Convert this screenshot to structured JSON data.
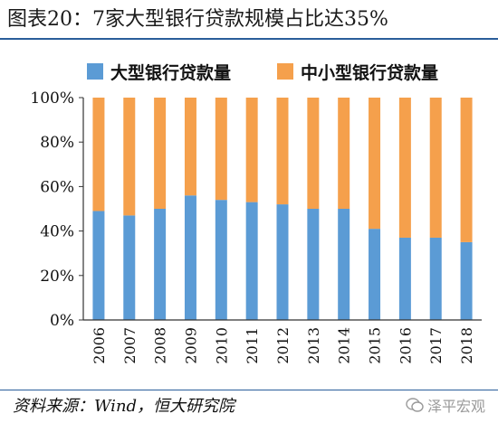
{
  "title": "图表20：7家大型银行贷款规模占比达35%",
  "source": "资料来源：Wind，恒大研究院",
  "watermark": "泽平宏观",
  "colors": {
    "accent": "#2a5d9a",
    "large_banks": "#5b9bd5",
    "small_medium_banks": "#f5a04c"
  },
  "chart_data": {
    "type": "bar",
    "stacked": true,
    "categories": [
      "2006",
      "2007",
      "2008",
      "2009",
      "2010",
      "2011",
      "2012",
      "2013",
      "2014",
      "2015",
      "2016",
      "2017",
      "2018"
    ],
    "series": [
      {
        "name": "大型银行贷款量",
        "values": [
          49,
          47,
          50,
          56,
          54,
          53,
          52,
          50,
          50,
          41,
          37,
          37,
          35
        ]
      },
      {
        "name": "中小型银行贷款量",
        "values": [
          51,
          53,
          50,
          44,
          46,
          47,
          48,
          50,
          50,
          59,
          63,
          63,
          65
        ]
      }
    ],
    "ylim": [
      0,
      100
    ],
    "yticks": [
      "0%",
      "20%",
      "40%",
      "60%",
      "80%",
      "100%"
    ],
    "legend": "top",
    "grid": false
  }
}
